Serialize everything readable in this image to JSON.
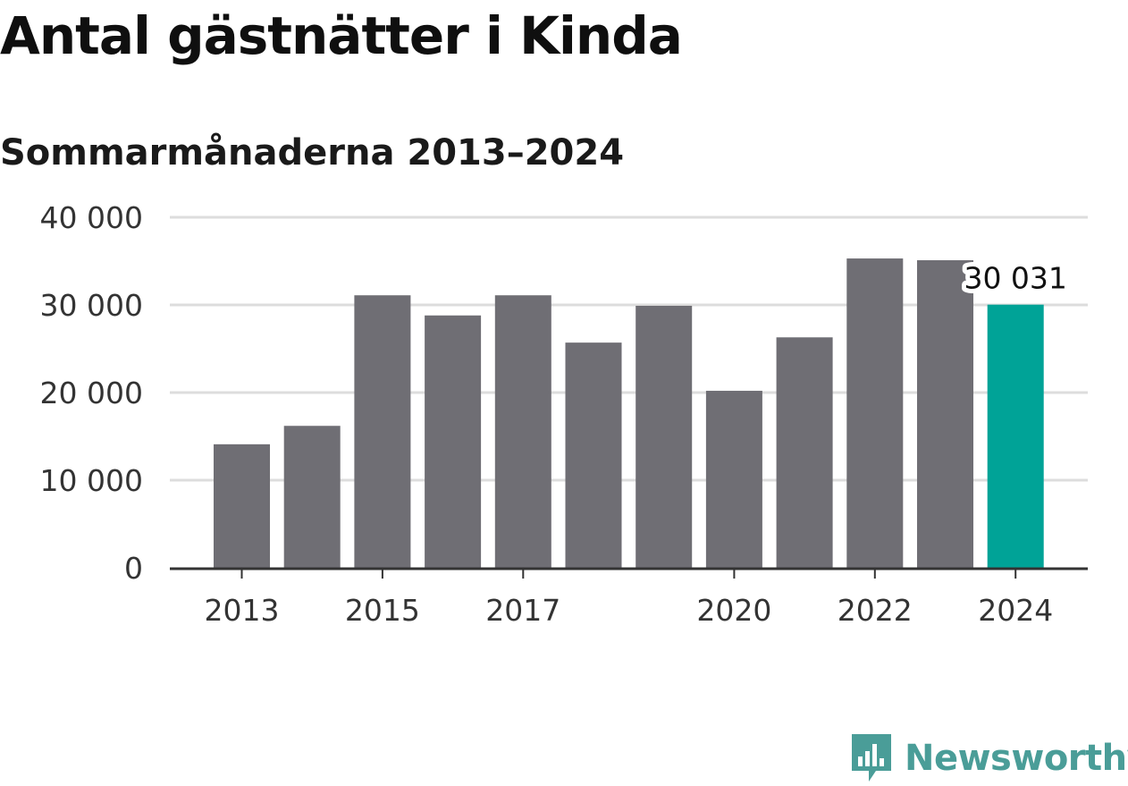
{
  "header": {
    "title": "Antal gästnätter i Kinda",
    "subtitle": "Sommarmånaderna 2013–2024"
  },
  "brand": {
    "name": "Newsworthy",
    "color": "#4a9d98",
    "icon": "bar-chart-speech-bubble-icon"
  },
  "colors": {
    "bar": "#6f6e74",
    "highlight": "#00a397",
    "grid": "#dddddd",
    "axis": "#333333"
  },
  "chart_data": {
    "type": "bar",
    "title": "Antal gästnätter i Kinda",
    "subtitle": "Sommarmånaderna 2013–2024",
    "categories": [
      "2013",
      "2014",
      "2015",
      "2016",
      "2017",
      "2018",
      "2019",
      "2020",
      "2021",
      "2022",
      "2023",
      "2024"
    ],
    "values": [
      14100,
      16200,
      31100,
      28800,
      31100,
      25700,
      29900,
      20200,
      26300,
      35300,
      35100,
      30031
    ],
    "x_tick_labels": [
      "2013",
      "2015",
      "2017",
      "2020",
      "2022",
      "2024"
    ],
    "y_ticks": [
      0,
      10000,
      20000,
      30000,
      40000
    ],
    "y_tick_labels": [
      "0",
      "10 000",
      "20 000",
      "30 000",
      "40 000"
    ],
    "ylim": [
      0,
      40000
    ],
    "highlight_index": 11,
    "annotation": {
      "index": 11,
      "text": "30 031"
    },
    "grid": true,
    "legend": "none",
    "xlabel": "",
    "ylabel": ""
  }
}
